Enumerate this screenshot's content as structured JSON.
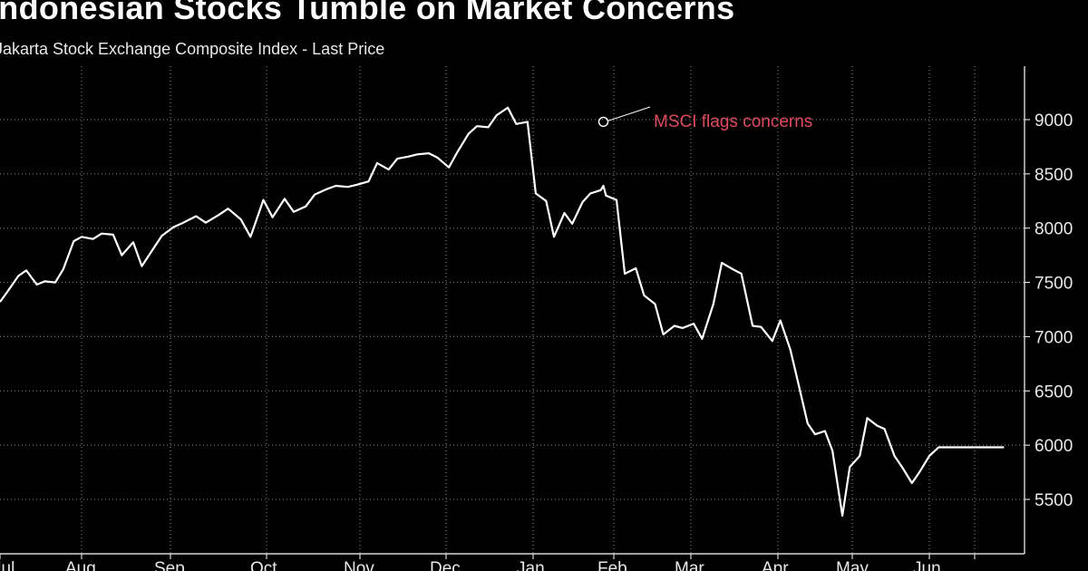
{
  "title": "Indonesian Stocks Tumble on Market Concerns",
  "subtitle": "Jakarta Stock Exchange Composite Index - Last Price",
  "colors": {
    "background": "#000000",
    "line": "#ffffff",
    "grid": "#8a8a8a",
    "annotation": "#e04a5f"
  },
  "chart_data": {
    "type": "line",
    "title": "Indonesian Stocks Tumble on Market Concerns",
    "subtitle": "Jakarta Stock Exchange Composite Index - Last Price",
    "series": [
      {
        "name": "Jakarta Stock Exchange Composite Index - Last Price",
        "x": [
          "Jul 1",
          "Jul 4",
          "Jul 8",
          "Jul 11",
          "Jul 15",
          "Jul 18",
          "Jul 22",
          "Jul 25",
          "Jul 29",
          "Aug 1",
          "Aug 5",
          "Aug 8",
          "Aug 12",
          "Aug 15",
          "Aug 19",
          "Aug 22",
          "Aug 26",
          "Aug 29",
          "Sep 2",
          "Sep 5",
          "Sep 9",
          "Sep 12",
          "Sep 16",
          "Sep 19",
          "Sep 23",
          "Sep 26",
          "Sep 30",
          "Oct 3",
          "Oct 7",
          "Oct 10",
          "Oct 14",
          "Oct 17",
          "Oct 21",
          "Oct 24",
          "Oct 28",
          "Oct 31",
          "Nov 4",
          "Nov 7",
          "Nov 11",
          "Nov 14",
          "Nov 18",
          "Nov 21",
          "Nov 25",
          "Nov 28",
          "Dec 2",
          "Dec 5",
          "Dec 9",
          "Dec 12",
          "Dec 16",
          "Dec 19",
          "Dec 23",
          "Dec 26",
          "Dec 30",
          "Jan 2",
          "Jan 6",
          "Jan 9",
          "Jan 13",
          "Jan 16",
          "Jan 20",
          "Jan 23",
          "Jan 27",
          "Jan 28",
          "Jan 29",
          "Feb 2",
          "Feb 5",
          "Feb 9",
          "Feb 12",
          "Feb 16",
          "Feb 19",
          "Feb 23",
          "Feb 26",
          "Mar 2",
          "Mar 5",
          "Mar 9",
          "Mar 12",
          "Mar 16",
          "Mar 19",
          "Mar 23",
          "Mar 26",
          "Mar 30",
          "Apr 2",
          "Apr 6",
          "Apr 9",
          "Apr 13",
          "Apr 16",
          "Apr 20",
          "Apr 23",
          "Apr 27",
          "Apr 30",
          "May 4",
          "May 7",
          "May 11",
          "May 14",
          "May 18",
          "May 21",
          "May 25",
          "May 28",
          "Jun 1",
          "Jun 4",
          "Jun 8",
          "Jun 11",
          "Jun 15",
          "Jun 18",
          "Jun 22",
          "Jun 25"
        ],
        "values": [
          7320,
          7420,
          7560,
          7610,
          7480,
          7510,
          7500,
          7620,
          7880,
          7920,
          7900,
          7950,
          7940,
          7750,
          7870,
          7650,
          7810,
          7930,
          8010,
          8050,
          8110,
          8050,
          8120,
          8180,
          8080,
          7920,
          8260,
          8100,
          8270,
          8150,
          8200,
          8310,
          8360,
          8390,
          8380,
          8400,
          8430,
          8600,
          8540,
          8640,
          8660,
          8680,
          8690,
          8650,
          8560,
          8700,
          8870,
          8940,
          8930,
          9040,
          9110,
          8960,
          8980,
          8320,
          8250,
          7920,
          8140,
          8040,
          8240,
          8320,
          8350,
          8390,
          8300,
          8260,
          7580,
          7630,
          7380,
          7300,
          7020,
          7100,
          7080,
          7120,
          6980,
          7300,
          7680,
          7620,
          7580,
          7100,
          7090,
          6960,
          7150,
          6880,
          6590,
          6200,
          6100,
          6130,
          5950,
          5350,
          5800,
          5900,
          6250,
          6180,
          6150,
          5900,
          5800,
          5650,
          5750,
          5900,
          5980,
          5980,
          5980,
          5980,
          5980,
          5980,
          5980
        ]
      }
    ],
    "xlabel": "",
    "ylabel": "",
    "x_tick_labels": [
      "Jul",
      "Aug",
      "Sep",
      "Oct",
      "Nov",
      "Dec",
      "Jan",
      "Feb",
      "Mar",
      "Apr",
      "May",
      "Jun"
    ],
    "y_ticks": [
      5500,
      6000,
      6500,
      7000,
      7500,
      8000,
      8500,
      9000
    ],
    "ylim": [
      5000,
      9500
    ],
    "y_axis_side": "right",
    "grid": true,
    "grid_style": "dotted",
    "annotations": [
      {
        "text": "MSCI flags concerns",
        "x": "Jan 28",
        "y": 8980
      }
    ]
  }
}
